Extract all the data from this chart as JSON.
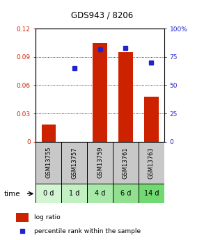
{
  "title": "GDS943 / 8206",
  "samples": [
    "GSM13755",
    "GSM13757",
    "GSM13759",
    "GSM13761",
    "GSM13763"
  ],
  "time_labels": [
    "0 d",
    "1 d",
    "4 d",
    "6 d",
    "14 d"
  ],
  "log_ratio": [
    0.018,
    0.0,
    0.105,
    0.095,
    0.048
  ],
  "percentile_rank": [
    null,
    65.0,
    82.0,
    83.0,
    70.0
  ],
  "ylim_left": [
    0,
    0.12
  ],
  "ylim_right": [
    0,
    100
  ],
  "yticks_left": [
    0,
    0.03,
    0.06,
    0.09,
    0.12
  ],
  "yticks_right": [
    0,
    25,
    50,
    75,
    100
  ],
  "bar_color": "#cc2200",
  "dot_color": "#2222cc",
  "bg_color": "#ffffff",
  "plot_bg": "#ffffff",
  "label_left_color": "#cc2200",
  "label_right_color": "#2222cc",
  "gsm_box_color": "#c8c8c8",
  "green_shades": [
    "#d4f5d4",
    "#c2f0c2",
    "#a8e8a8",
    "#90e090",
    "#72d872"
  ],
  "bar_width": 0.55,
  "title_fontsize": 8.5,
  "tick_fontsize": 6.5,
  "gsm_fontsize": 6,
  "time_fontsize": 7,
  "legend_fontsize": 6.5
}
